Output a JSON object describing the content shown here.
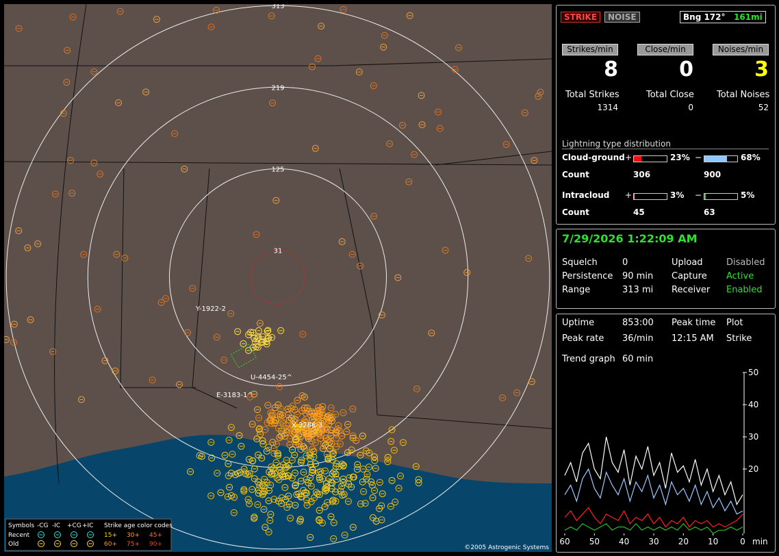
{
  "map": {
    "rings": [
      313,
      219,
      125,
      31
    ],
    "storm_labels": [
      "Y-1922-2",
      "U-4454-25^",
      "E-3183-1^",
      "X-3286-3"
    ],
    "legend": {
      "symbols": "Symbols",
      "types": [
        "-CG",
        "-IC",
        "+CG",
        "+IC"
      ],
      "age_title": "Strike age color codes",
      "rows": [
        "Recent",
        "Old"
      ],
      "ages": [
        [
          "15+",
          "30+",
          "45+"
        ],
        [
          "60+",
          "75+",
          "90+"
        ]
      ]
    },
    "copyright": "©2005 Astrogenic Systems"
  },
  "header": {
    "strike_button": "STRIKE",
    "noise_button": "NOISE",
    "bearing": "Bng 172°",
    "distance": "161mi"
  },
  "rates": [
    {
      "label": "Strikes/min",
      "value": 8
    },
    {
      "label": "Close/min",
      "value": 0
    },
    {
      "label": "Noises/min",
      "value": 3
    }
  ],
  "totals": [
    {
      "label": "Total Strikes",
      "value": 1314
    },
    {
      "label": "Total Close",
      "value": 0
    },
    {
      "label": "Total Noises",
      "value": 52
    }
  ],
  "distribution": {
    "title": "Lightning type distribution",
    "signs": [
      "+",
      "−"
    ],
    "count_label": "Count",
    "rows": [
      {
        "label": "Cloud-ground",
        "plus_pct": {
          "value": 23,
          "label": "23%"
        },
        "minus_pct": {
          "value": 68,
          "label": "68%"
        },
        "plus_count": 306,
        "minus_count": 900
      },
      {
        "label": "Intracloud",
        "plus_pct": {
          "value": 3,
          "label": "3%"
        },
        "minus_pct": {
          "value": 5,
          "label": "5%"
        },
        "plus_count": 45,
        "minus_count": 63
      }
    ]
  },
  "clock": "7/29/2026 1:22:09 AM",
  "settings": [
    [
      "Squelch",
      "0",
      "Upload",
      "Disabled"
    ],
    [
      "Persistence",
      "90 min",
      "Capture",
      "Active"
    ],
    [
      "Range",
      "313 mi",
      "Receiver",
      "Enabled"
    ]
  ],
  "stats": [
    [
      "Uptime",
      "853:00",
      "Peak time",
      "Plot"
    ],
    [
      "Peak rate",
      "36/min",
      "12:15 AM",
      "Strike"
    ],
    [
      "Trend graph",
      "60 min"
    ]
  ],
  "chart_data": {
    "type": "line",
    "x": [
      60,
      58,
      56,
      54,
      52,
      50,
      48,
      46,
      44,
      42,
      40,
      38,
      36,
      34,
      32,
      30,
      28,
      26,
      24,
      22,
      20,
      18,
      16,
      14,
      12,
      10,
      8,
      6,
      4,
      2,
      0
    ],
    "xlim": [
      60,
      0
    ],
    "xticks": [
      60,
      50,
      40,
      30,
      20,
      10,
      0
    ],
    "xlabel": "min",
    "ylim": [
      0,
      50
    ],
    "yticks": [
      20,
      30,
      40,
      50
    ],
    "series": [
      {
        "color": "#ffffff",
        "values": [
          18,
          22,
          16,
          25,
          28,
          20,
          17,
          30,
          22,
          19,
          26,
          15,
          24,
          20,
          27,
          18,
          22,
          14,
          25,
          19,
          21,
          16,
          23,
          15,
          20,
          13,
          18,
          12,
          16,
          9,
          12
        ]
      },
      {
        "color": "#9ec8ff",
        "values": [
          12,
          15,
          10,
          17,
          20,
          14,
          11,
          19,
          15,
          12,
          17,
          10,
          16,
          13,
          18,
          11,
          15,
          9,
          16,
          12,
          14,
          10,
          15,
          9,
          13,
          8,
          11,
          7,
          10,
          6,
          7
        ]
      },
      {
        "color": "#ff2020",
        "values": [
          5,
          7,
          4,
          6,
          8,
          5,
          3,
          6,
          5,
          4,
          7,
          3,
          5,
          4,
          6,
          3,
          5,
          2,
          4,
          3,
          5,
          2,
          4,
          3,
          4,
          2,
          3,
          2,
          3,
          4,
          6
        ]
      },
      {
        "color": "#20c020",
        "values": [
          1,
          2,
          1,
          3,
          2,
          1,
          2,
          3,
          1,
          2,
          2,
          1,
          3,
          1,
          2,
          1,
          2,
          1,
          2,
          1,
          3,
          1,
          2,
          1,
          2,
          0,
          1,
          1,
          2,
          1,
          2
        ]
      }
    ]
  }
}
